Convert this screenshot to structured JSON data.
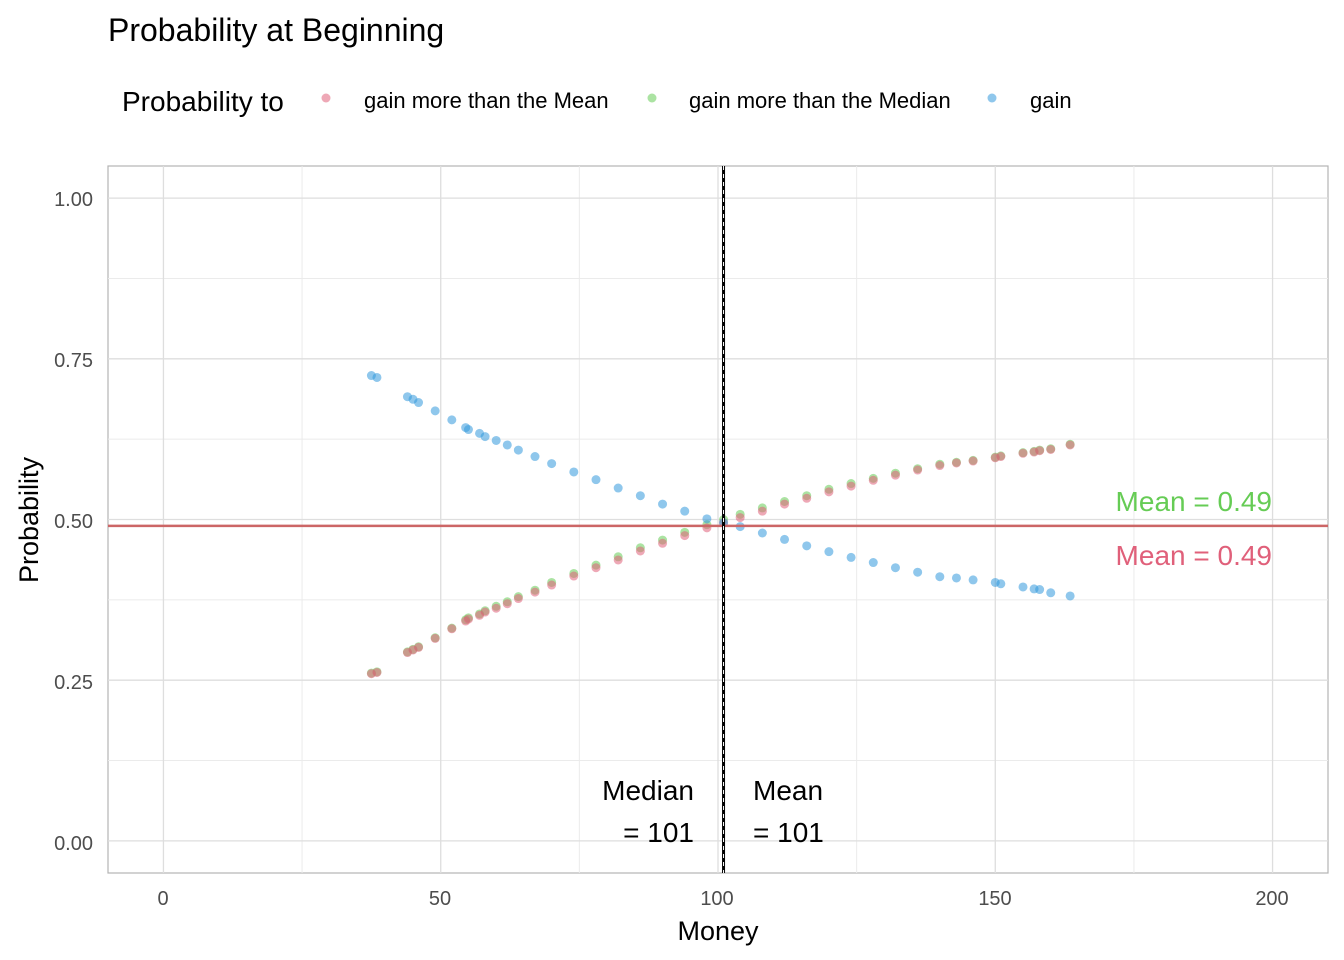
{
  "chart_data": {
    "type": "scatter",
    "title": "Probability at Beginning",
    "xlabel": "Money",
    "ylabel": "Probability",
    "xlim": [
      -10,
      210
    ],
    "ylim": [
      -0.05,
      1.05
    ],
    "x_ticks": [
      "0",
      "50",
      "100",
      "150",
      "200"
    ],
    "y_ticks": [
      "0.00",
      "0.25",
      "0.50",
      "0.75",
      "1.00"
    ],
    "grid": true,
    "legend": {
      "title": "Probability to",
      "placement": "top",
      "entries": [
        "gain more than the Mean",
        "gain more than the Median",
        "gain"
      ]
    },
    "colors": {
      "gain_more_than_mean": "#e0607a",
      "gain_more_than_median": "#66cc55",
      "gain": "#3399dd",
      "mean_line": "#cc6666",
      "median_line": "#000000"
    },
    "series": [
      {
        "name": "gain more than the Mean",
        "x": [
          37.5,
          38.5,
          44,
          45,
          46,
          49,
          52,
          54.5,
          55,
          57,
          58,
          60,
          62,
          64,
          67,
          70,
          74,
          78,
          82,
          86,
          90,
          94,
          98,
          101,
          104,
          108,
          112,
          116,
          120,
          124,
          128,
          132,
          136,
          140,
          143,
          146,
          150,
          151,
          155,
          157,
          158,
          160,
          163.5
        ],
        "y": [
          0.26,
          0.262,
          0.293,
          0.297,
          0.301,
          0.315,
          0.33,
          0.342,
          0.345,
          0.351,
          0.356,
          0.362,
          0.369,
          0.377,
          0.387,
          0.398,
          0.412,
          0.425,
          0.437,
          0.451,
          0.463,
          0.475,
          0.487,
          0.495,
          0.503,
          0.513,
          0.524,
          0.533,
          0.543,
          0.552,
          0.561,
          0.569,
          0.577,
          0.584,
          0.588,
          0.591,
          0.596,
          0.598,
          0.603,
          0.605,
          0.607,
          0.609,
          0.616
        ]
      },
      {
        "name": "gain more than the Median",
        "x": [
          37.5,
          38.5,
          44,
          45,
          46,
          49,
          52,
          54.5,
          55,
          57,
          58,
          60,
          62,
          64,
          67,
          70,
          74,
          78,
          82,
          86,
          90,
          94,
          98,
          101,
          104,
          108,
          112,
          116,
          120,
          124,
          128,
          132,
          136,
          140,
          143,
          146,
          150,
          151,
          155,
          157,
          158,
          160,
          163.5
        ],
        "y": [
          0.261,
          0.263,
          0.294,
          0.298,
          0.302,
          0.316,
          0.331,
          0.344,
          0.347,
          0.353,
          0.358,
          0.365,
          0.372,
          0.38,
          0.39,
          0.402,
          0.416,
          0.429,
          0.442,
          0.456,
          0.468,
          0.48,
          0.492,
          0.5,
          0.508,
          0.518,
          0.528,
          0.537,
          0.547,
          0.556,
          0.564,
          0.572,
          0.579,
          0.586,
          0.589,
          0.592,
          0.597,
          0.599,
          0.604,
          0.606,
          0.608,
          0.61,
          0.617
        ]
      },
      {
        "name": "gain",
        "x": [
          37.5,
          38.5,
          44,
          45,
          46,
          49,
          52,
          54.5,
          55,
          57,
          58,
          60,
          62,
          64,
          67,
          70,
          74,
          78,
          82,
          86,
          90,
          94,
          98,
          101,
          104,
          108,
          112,
          116,
          120,
          124,
          128,
          132,
          136,
          140,
          143,
          146,
          150,
          151,
          155,
          157,
          158,
          160,
          163.5
        ],
        "y": [
          0.724,
          0.721,
          0.691,
          0.687,
          0.682,
          0.669,
          0.655,
          0.643,
          0.64,
          0.634,
          0.629,
          0.623,
          0.616,
          0.608,
          0.598,
          0.587,
          0.574,
          0.562,
          0.549,
          0.537,
          0.524,
          0.513,
          0.501,
          0.495,
          0.489,
          0.479,
          0.469,
          0.459,
          0.45,
          0.441,
          0.433,
          0.425,
          0.418,
          0.411,
          0.409,
          0.406,
          0.402,
          0.4,
          0.395,
          0.392,
          0.391,
          0.386,
          0.381
        ]
      }
    ],
    "reference_lines": {
      "horizontal_mean_y": 0.49,
      "vertical_median_x": 101,
      "vertical_mean_x": 101
    },
    "annotations": {
      "median_line1": "Median",
      "median_line2": "= 101",
      "mean_line1": "Mean",
      "mean_line2": "= 101",
      "mean_green": "Mean = 0.49",
      "mean_red": "Mean = 0.49"
    }
  }
}
